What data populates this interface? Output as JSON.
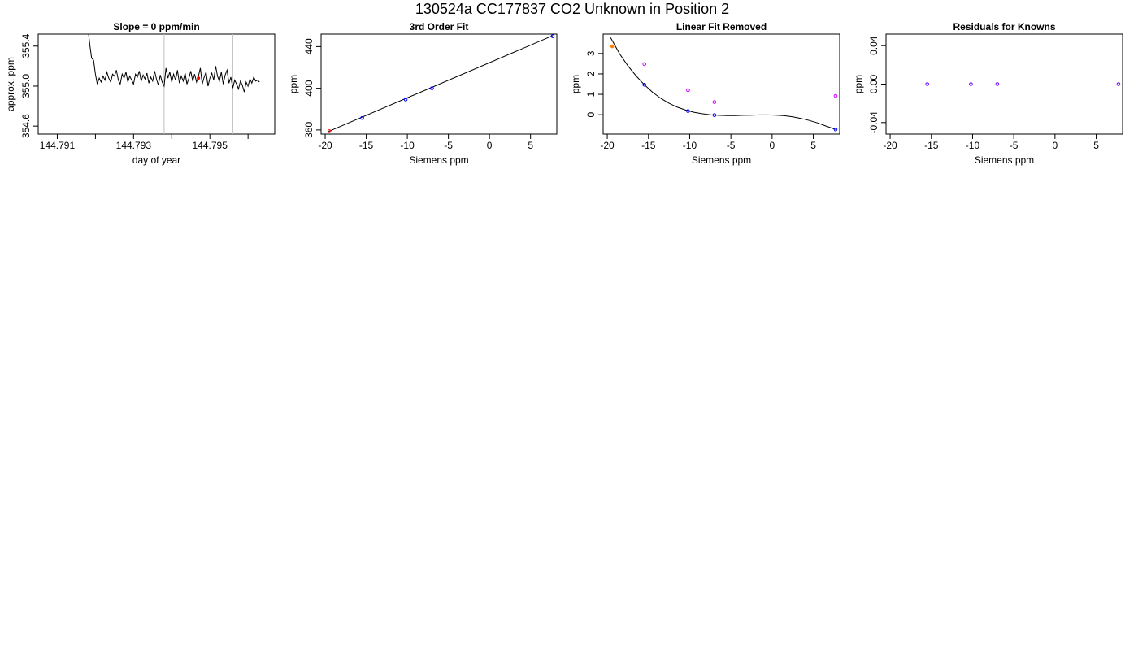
{
  "figure": {
    "title": "130524a     CC177837   CO2 Unknown in Position  2"
  },
  "colors": {
    "trace": "#000000",
    "marker_red": "#ff0000",
    "marker_blue": "#0000ff",
    "marker_magenta": "#cc00ff",
    "marker_orange": "#ff8000",
    "window_line": "#bebebe"
  },
  "chart_data": [
    {
      "type": "line",
      "title": "Slope =  0  ppm/min",
      "xlabel": "day of year",
      "ylabel": "approx. ppm",
      "xlim": [
        144.7905,
        144.7967
      ],
      "ylim": [
        354.52,
        355.52
      ],
      "xticks": [
        144.791,
        144.792,
        144.793,
        144.794,
        144.795,
        144.796
      ],
      "xtick_labels": [
        "144.791",
        "",
        "144.793",
        "",
        "144.795",
        ""
      ],
      "yticks": [
        354.6,
        355.0,
        355.4
      ],
      "ytick_labels": [
        "354.6",
        "355.0",
        "355.4"
      ],
      "window_lines": [
        144.7938,
        144.7956
      ],
      "marker": {
        "x": 144.7947,
        "y": 355.08
      },
      "series": [
        {
          "x": [
            144.7918,
            144.79185,
            144.7919,
            144.79195,
            144.792,
            144.79205,
            144.7921,
            144.79215,
            144.7922,
            144.79225,
            144.7923,
            144.79235,
            144.7924,
            144.79245,
            144.7925,
            144.79255,
            144.7926,
            144.79265,
            144.7927,
            144.79275,
            144.7928,
            144.79285,
            144.7929,
            144.79295,
            144.793,
            144.79305,
            144.7931,
            144.79315,
            144.7932,
            144.79325,
            144.7933,
            144.79335,
            144.7934,
            144.79345,
            144.7935,
            144.79355,
            144.7936,
            144.79365,
            144.7937,
            144.79375,
            144.7938,
            144.79385,
            144.7939,
            144.79395,
            144.794,
            144.79405,
            144.7941,
            144.79415,
            144.7942,
            144.79425,
            144.7943,
            144.79435,
            144.7944,
            144.79445,
            144.7945,
            144.79455,
            144.7946,
            144.79465,
            144.7947,
            144.79475,
            144.7948,
            144.79485,
            144.7949,
            144.79495,
            144.795,
            144.79505,
            144.7951,
            144.79515,
            144.7952,
            144.79525,
            144.7953,
            144.79535,
            144.7954,
            144.79545,
            144.7955,
            144.79555,
            144.7956,
            144.79565,
            144.7957,
            144.79575,
            144.7958,
            144.79585,
            144.7959,
            144.79595,
            144.796,
            144.79605,
            144.7961,
            144.79615,
            144.7962,
            144.79625,
            144.7963
          ],
          "values": [
            355.6,
            355.42,
            355.28,
            355.26,
            355.12,
            355.02,
            355.08,
            355.04,
            355.1,
            355.06,
            355.14,
            355.08,
            355.04,
            355.12,
            355.1,
            355.16,
            355.06,
            355.02,
            355.12,
            355.08,
            355.14,
            355.04,
            355.1,
            355.06,
            355.02,
            355.12,
            355.09,
            355.15,
            355.05,
            355.11,
            355.07,
            355.13,
            355.03,
            355.09,
            355.05,
            355.15,
            355.07,
            355.01,
            355.11,
            355.04,
            355.0,
            355.18,
            355.08,
            355.14,
            355.04,
            355.12,
            355.06,
            355.16,
            355.03,
            355.1,
            355.05,
            355.13,
            355.02,
            355.08,
            355.15,
            355.05,
            355.12,
            355.04,
            355.1,
            355.18,
            355.02,
            355.09,
            355.14,
            355.0,
            355.08,
            355.13,
            355.06,
            355.2,
            355.1,
            355.05,
            355.14,
            355.02,
            355.11,
            355.16,
            355.03,
            355.09,
            354.98,
            355.06,
            355.02,
            354.97,
            355.05,
            355.01,
            354.94,
            355.04,
            355.0,
            355.07,
            355.03,
            355.09,
            355.05,
            355.06,
            355.04
          ]
        }
      ]
    },
    {
      "type": "scatter",
      "title": "3rd Order Fit",
      "xlabel": "Siemens ppm",
      "ylabel": "ppm",
      "xlim": [
        -20.5,
        8.2
      ],
      "ylim": [
        356,
        452
      ],
      "xticks": [
        -20,
        -15,
        -10,
        -5,
        0,
        5
      ],
      "xtick_labels": [
        "-20",
        "-15",
        "-10",
        "-5",
        "0",
        "5"
      ],
      "yticks": [
        360,
        400,
        440
      ],
      "ytick_labels": [
        "360",
        "400",
        "440"
      ],
      "fit_line": {
        "x": [
          -19.6,
          7.7
        ],
        "y": [
          358.5,
          450.5
        ]
      },
      "points": [
        {
          "x": -19.5,
          "y": 358.8,
          "color": "#ff0000"
        },
        {
          "x": -15.5,
          "y": 371.5,
          "color": "#0000ff"
        },
        {
          "x": -10.2,
          "y": 389.2,
          "color": "#0000ff"
        },
        {
          "x": -7.0,
          "y": 400.0,
          "color": "#0000ff"
        },
        {
          "x": 7.7,
          "y": 450.0,
          "color": "#0000ff"
        }
      ]
    },
    {
      "type": "scatter",
      "title": "Linear Fit Removed",
      "xlabel": "Siemens ppm",
      "ylabel": "ppm",
      "xlim": [
        -20.5,
        8.2
      ],
      "ylim": [
        -0.95,
        3.95
      ],
      "xticks": [
        -20,
        -15,
        -10,
        -5,
        0,
        5
      ],
      "xtick_labels": [
        "-20",
        "-15",
        "-10",
        "-5",
        "0",
        "5"
      ],
      "yticks": [
        0,
        1,
        2,
        3
      ],
      "ytick_labels": [
        "0",
        "1",
        "2",
        "3"
      ],
      "curve": {
        "x": [
          -19.6,
          -18.5,
          -17.5,
          -16.5,
          -15.5,
          -14.5,
          -13.5,
          -12.5,
          -11.5,
          -10.5,
          -9.5,
          -8.5,
          -7.5,
          -6.5,
          -5.5,
          -4.5,
          -3.5,
          -2.5,
          -1.5,
          -0.5,
          0.5,
          1.5,
          2.5,
          3.5,
          4.5,
          5.5,
          6.5,
          7.7
        ],
        "y": [
          3.78,
          2.98,
          2.4,
          1.9,
          1.47,
          1.1,
          0.8,
          0.56,
          0.37,
          0.23,
          0.12,
          0.05,
          0.0,
          -0.03,
          -0.04,
          -0.04,
          -0.03,
          -0.02,
          -0.01,
          -0.01,
          -0.02,
          -0.05,
          -0.1,
          -0.18,
          -0.28,
          -0.4,
          -0.55,
          -0.72
        ]
      },
      "points": [
        {
          "x": -19.4,
          "y": 3.35,
          "color": "#ff8000",
          "filled": true
        },
        {
          "x": -15.5,
          "y": 2.48,
          "color": "#cc00ff"
        },
        {
          "x": -15.5,
          "y": 1.47,
          "color": "#0000ff"
        },
        {
          "x": -10.2,
          "y": 1.2,
          "color": "#cc00ff"
        },
        {
          "x": -10.2,
          "y": 0.18,
          "color": "#0000ff"
        },
        {
          "x": -7.0,
          "y": 0.62,
          "color": "#cc00ff"
        },
        {
          "x": -7.0,
          "y": -0.02,
          "color": "#0000ff"
        },
        {
          "x": 7.7,
          "y": 0.92,
          "color": "#cc00ff"
        },
        {
          "x": 7.7,
          "y": -0.72,
          "color": "#0000ff"
        }
      ]
    },
    {
      "type": "scatter",
      "title": "Residuals for Knowns",
      "xlabel": "Siemens ppm",
      "ylabel": "ppm",
      "xlim": [
        -20.5,
        8.2
      ],
      "ylim": [
        -0.052,
        0.052
      ],
      "xticks": [
        -20,
        -15,
        -10,
        -5,
        0,
        5
      ],
      "xtick_labels": [
        "-20",
        "-15",
        "-10",
        "-5",
        "0",
        "5"
      ],
      "yticks": [
        -0.04,
        0.0,
        0.04
      ],
      "ytick_labels": [
        "-0.04",
        "0.00",
        "0.04"
      ],
      "points": [
        {
          "x": -15.5,
          "y": 0.0,
          "color": "#6a00ff"
        },
        {
          "x": -10.2,
          "y": 0.0,
          "color": "#6a00ff"
        },
        {
          "x": -7.0,
          "y": 0.0,
          "color": "#6a00ff"
        },
        {
          "x": 7.7,
          "y": 0.0,
          "color": "#6a00ff"
        }
      ]
    }
  ]
}
